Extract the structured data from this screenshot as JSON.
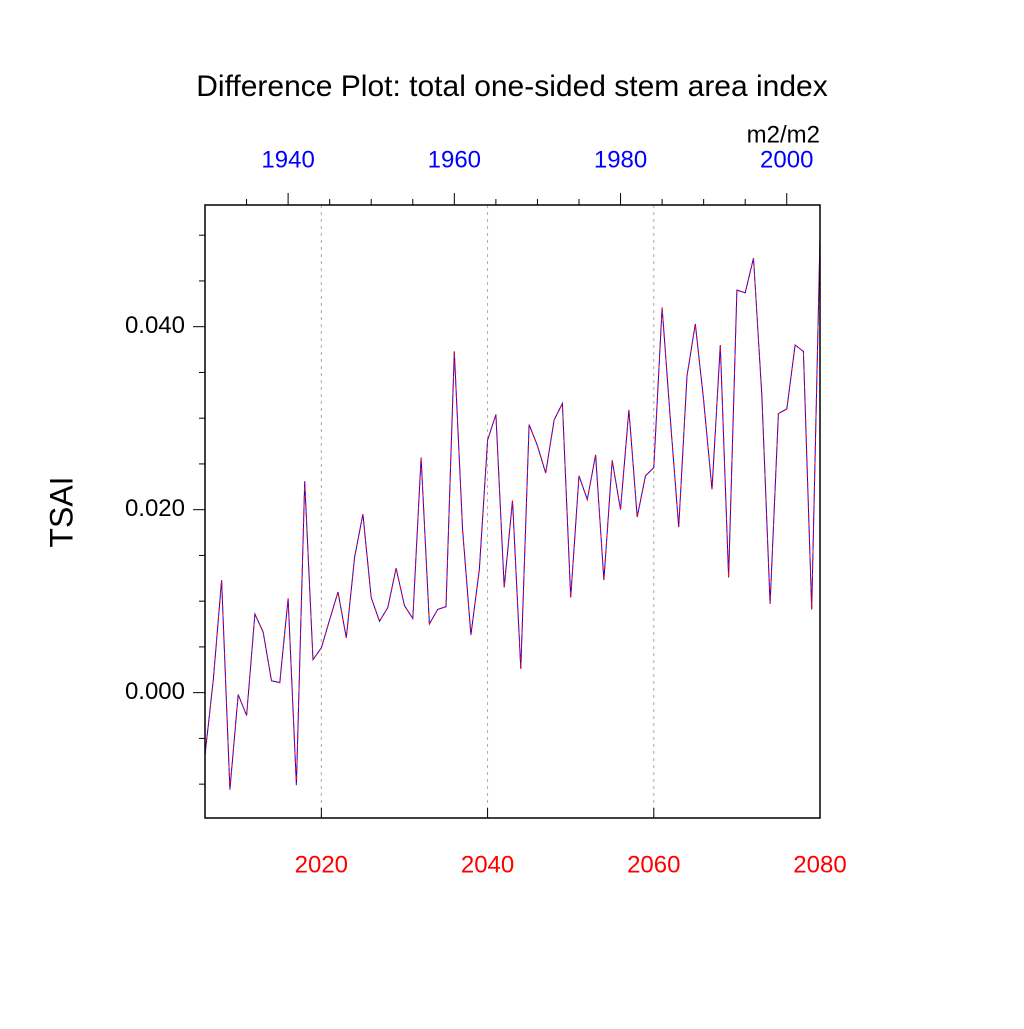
{
  "chart_data": {
    "type": "line",
    "title": "Difference Plot: total one-sided stem area index",
    "units": "m2/m2",
    "ylabel": "TSAI",
    "x": [
      2006,
      2007,
      2008,
      2009,
      2010,
      2011,
      2012,
      2013,
      2014,
      2015,
      2016,
      2017,
      2018,
      2019,
      2020,
      2021,
      2022,
      2023,
      2024,
      2025,
      2026,
      2027,
      2028,
      2029,
      2030,
      2031,
      2032,
      2033,
      2034,
      2035,
      2036,
      2037,
      2038,
      2039,
      2040,
      2041,
      2042,
      2043,
      2044,
      2045,
      2046,
      2047,
      2048,
      2049,
      2050,
      2051,
      2052,
      2053,
      2054,
      2055,
      2056,
      2057,
      2058,
      2059,
      2060,
      2061,
      2062,
      2063,
      2064,
      2065,
      2066,
      2067,
      2068,
      2069,
      2070,
      2071,
      2072,
      2073,
      2074,
      2075,
      2076,
      2077,
      2078,
      2079,
      2080
    ],
    "values": [
      -0.0068,
      0.0014,
      0.0123,
      -0.0106,
      -0.0002,
      -0.0025,
      0.0086,
      0.0066,
      0.0013,
      0.0011,
      0.0103,
      -0.0101,
      0.0231,
      0.0036,
      0.0049,
      0.008,
      0.011,
      0.006,
      0.0148,
      0.0195,
      0.0104,
      0.0078,
      0.0093,
      0.0136,
      0.0095,
      0.0081,
      0.0257,
      0.0075,
      0.0091,
      0.0094,
      0.0373,
      0.0178,
      0.0063,
      0.0134,
      0.0276,
      0.0304,
      0.0115,
      0.021,
      0.0026,
      0.0293,
      0.027,
      0.024,
      0.0298,
      0.0316,
      0.0104,
      0.0237,
      0.0211,
      0.026,
      0.0123,
      0.0254,
      0.02,
      0.0309,
      0.0192,
      0.0237,
      0.0246,
      0.0421,
      0.0298,
      0.0181,
      0.0346,
      0.0403,
      0.032,
      0.0222,
      0.038,
      0.0126,
      0.044,
      0.0437,
      0.0475,
      0.0326,
      0.0097,
      0.0305,
      0.031,
      0.038,
      0.0373,
      0.0091,
      0.0497
    ],
    "color": "#0000ff",
    "dash_color": "#ff0000",
    "xlim": [
      2006,
      2080
    ],
    "xticks": [
      2020,
      2040,
      2060,
      2080
    ],
    "xtick_color": "#ff0000",
    "x2lim": [
      1930,
      2004
    ],
    "x2ticks": [
      1940,
      1960,
      1980,
      2000
    ],
    "x2tick_color": "#0000ff",
    "x2minorticks": [
      1935,
      1945,
      1950,
      1955,
      1965,
      1970,
      1975,
      1985,
      1990,
      1995
    ],
    "ylim": [
      -0.0137,
      0.0533
    ],
    "yticks": [
      {
        "value": 0,
        "label": "0.000"
      },
      {
        "value": 0.02,
        "label": "0.020"
      },
      {
        "value": 0.04,
        "label": "0.040"
      }
    ],
    "yminorticks": [
      -0.01,
      -0.005,
      0.005,
      0.01,
      0.015,
      0.025,
      0.03,
      0.035,
      0.045,
      0.05
    ],
    "grid": true
  }
}
